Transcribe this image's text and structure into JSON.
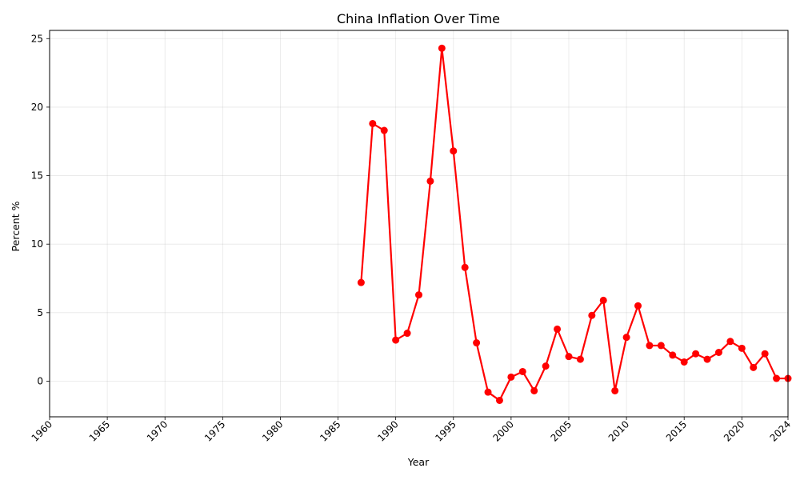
{
  "chart_data": {
    "type": "line",
    "title": "China Inflation Over Time",
    "xlabel": "Year",
    "ylabel": "Percent %",
    "xlim": [
      1960,
      2024
    ],
    "ylim": [
      -2.6,
      25.6
    ],
    "x_ticks": [
      1960,
      1965,
      1970,
      1975,
      1980,
      1985,
      1990,
      1995,
      2000,
      2005,
      2010,
      2015,
      2020,
      2024
    ],
    "y_ticks": [
      0,
      5,
      10,
      15,
      20,
      25
    ],
    "grid": true,
    "color": "#ff0000",
    "series": [
      {
        "x": [
          1987,
          1988,
          1989,
          1990,
          1991,
          1992,
          1993,
          1994,
          1995,
          1996,
          1997,
          1998,
          1999,
          2000,
          2001,
          2002,
          2003,
          2004,
          2005,
          2006,
          2007,
          2008,
          2009,
          2010,
          2011,
          2012,
          2013,
          2014,
          2015,
          2016,
          2017,
          2018,
          2019,
          2020,
          2021,
          2022,
          2023,
          2024
        ],
        "values": [
          7.2,
          18.8,
          18.3,
          3.0,
          3.5,
          6.3,
          14.6,
          24.3,
          16.8,
          8.3,
          2.8,
          -0.8,
          -1.4,
          0.3,
          0.7,
          -0.7,
          1.1,
          3.8,
          1.8,
          1.6,
          4.8,
          5.9,
          -0.7,
          3.2,
          5.5,
          2.6,
          2.6,
          1.9,
          1.4,
          2.0,
          1.6,
          2.1,
          2.9,
          2.4,
          1.0,
          2.0,
          0.2,
          0.2
        ]
      }
    ]
  }
}
